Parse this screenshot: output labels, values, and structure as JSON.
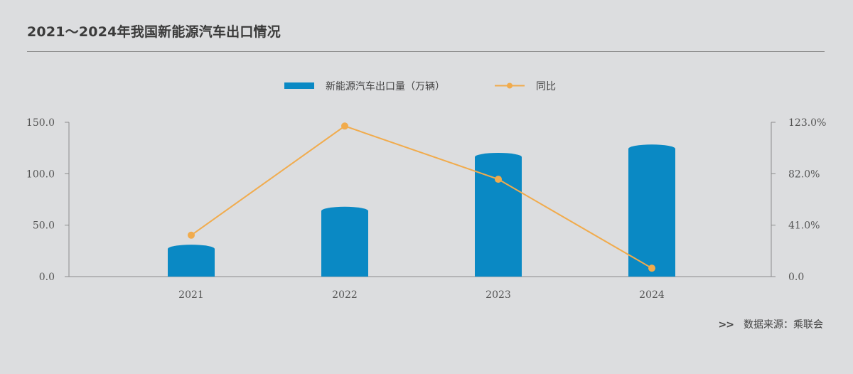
{
  "title": "2021～2024年我国新能源汽车出口情况",
  "source": {
    "arrow": ">>",
    "text": "数据来源：乘联会"
  },
  "colors": {
    "bar": "#0a89c4",
    "line": "#f1ab4c",
    "axis": "#8c8c8c"
  },
  "chart_data": {
    "type": "bar",
    "categories": [
      "2021",
      "2022",
      "2023",
      "2024"
    ],
    "series": [
      {
        "name": "新能源汽车出口量（万辆）",
        "type": "bar",
        "axis": "left",
        "values": [
          31.0,
          67.9,
          120.3,
          128.4
        ]
      },
      {
        "name": "同比",
        "type": "line",
        "axis": "right",
        "values": [
          33.0,
          120.0,
          77.6,
          6.7
        ]
      }
    ],
    "y_left": {
      "min": 0,
      "max": 150,
      "ticks": [
        "0.0",
        "50.0",
        "100.0",
        "150.0"
      ]
    },
    "y_right": {
      "min": 0,
      "max": 123,
      "ticks": [
        "0.0",
        "41.0%",
        "82.0%",
        "123.0%"
      ]
    },
    "legend_position": "top-center",
    "grid": false
  }
}
